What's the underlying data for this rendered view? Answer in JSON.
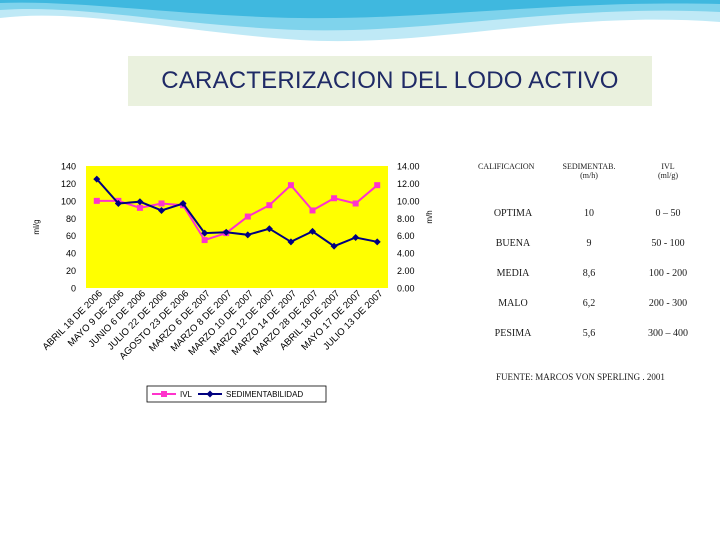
{
  "slide": {
    "title": "CARACTERIZACION DEL LODO ACTIVO"
  },
  "chart_data": {
    "type": "line",
    "categories": [
      "ABRIL 18 DE 2006",
      "MAYO 9 DE 2006",
      "JUNIO 6 DE 2006",
      "JULIO 22 DE 2006",
      "AGOSTO 23 DE 2006",
      "MARZO 6 DE 2007",
      "MARZO 8 DE 2007",
      "MARZO 10 DE 2007",
      "MARZO 12 DE 2007",
      "MARZO 14 DE 2007",
      "MARZO 28 DE 2007",
      "ABRIL 18 DE 2007",
      "MAYO 17 DE 2007",
      "JULIO 13 DE 2007"
    ],
    "y_left": {
      "label": "ml/g",
      "ticks": [
        "0",
        "20",
        "40",
        "60",
        "80",
        "100",
        "120",
        "140"
      ],
      "ylim": [
        0,
        140
      ]
    },
    "y_right": {
      "label": "m/h",
      "ticks": [
        "0.00",
        "2.00",
        "4.00",
        "6.00",
        "8.00",
        "10.00",
        "12.00",
        "14.00"
      ],
      "ylim": [
        0,
        14
      ]
    },
    "series": [
      {
        "name": "IVL",
        "axis": "left",
        "color": "#ff33cc",
        "marker": "square",
        "values": [
          100,
          100,
          92,
          97,
          95,
          55,
          63,
          82,
          95,
          118,
          89,
          103,
          97,
          118
        ]
      },
      {
        "name": "SEDIMENTABILIDAD",
        "axis": "right",
        "color": "#000080",
        "marker": "diamond",
        "values": [
          12.5,
          9.7,
          9.9,
          8.9,
          9.7,
          6.3,
          6.4,
          6.1,
          6.8,
          5.3,
          6.5,
          4.8,
          5.8,
          5.3
        ]
      }
    ],
    "plot_background": "#ffff00",
    "legend_position": "bottom"
  },
  "table": {
    "headers": [
      "CALIFICACION",
      "SEDIMENTAB.\n(m/h)",
      "IVL\n(ml/g)"
    ],
    "rows": [
      [
        "OPTIMA",
        "10",
        "0 – 50"
      ],
      [
        "BUENA",
        "9",
        "50 - 100"
      ],
      [
        "MEDIA",
        "8,6",
        "100 - 200"
      ],
      [
        "MALO",
        "6,2",
        "200 - 300"
      ],
      [
        "PESIMA",
        "5,6",
        "300 – 400"
      ]
    ]
  },
  "source": "FUENTE: MARCOS VON SPERLING . 2001",
  "colors": {
    "title_bg": "#eaf1de",
    "title_text": "#1f2a66",
    "wave": "#7fd3ec"
  }
}
